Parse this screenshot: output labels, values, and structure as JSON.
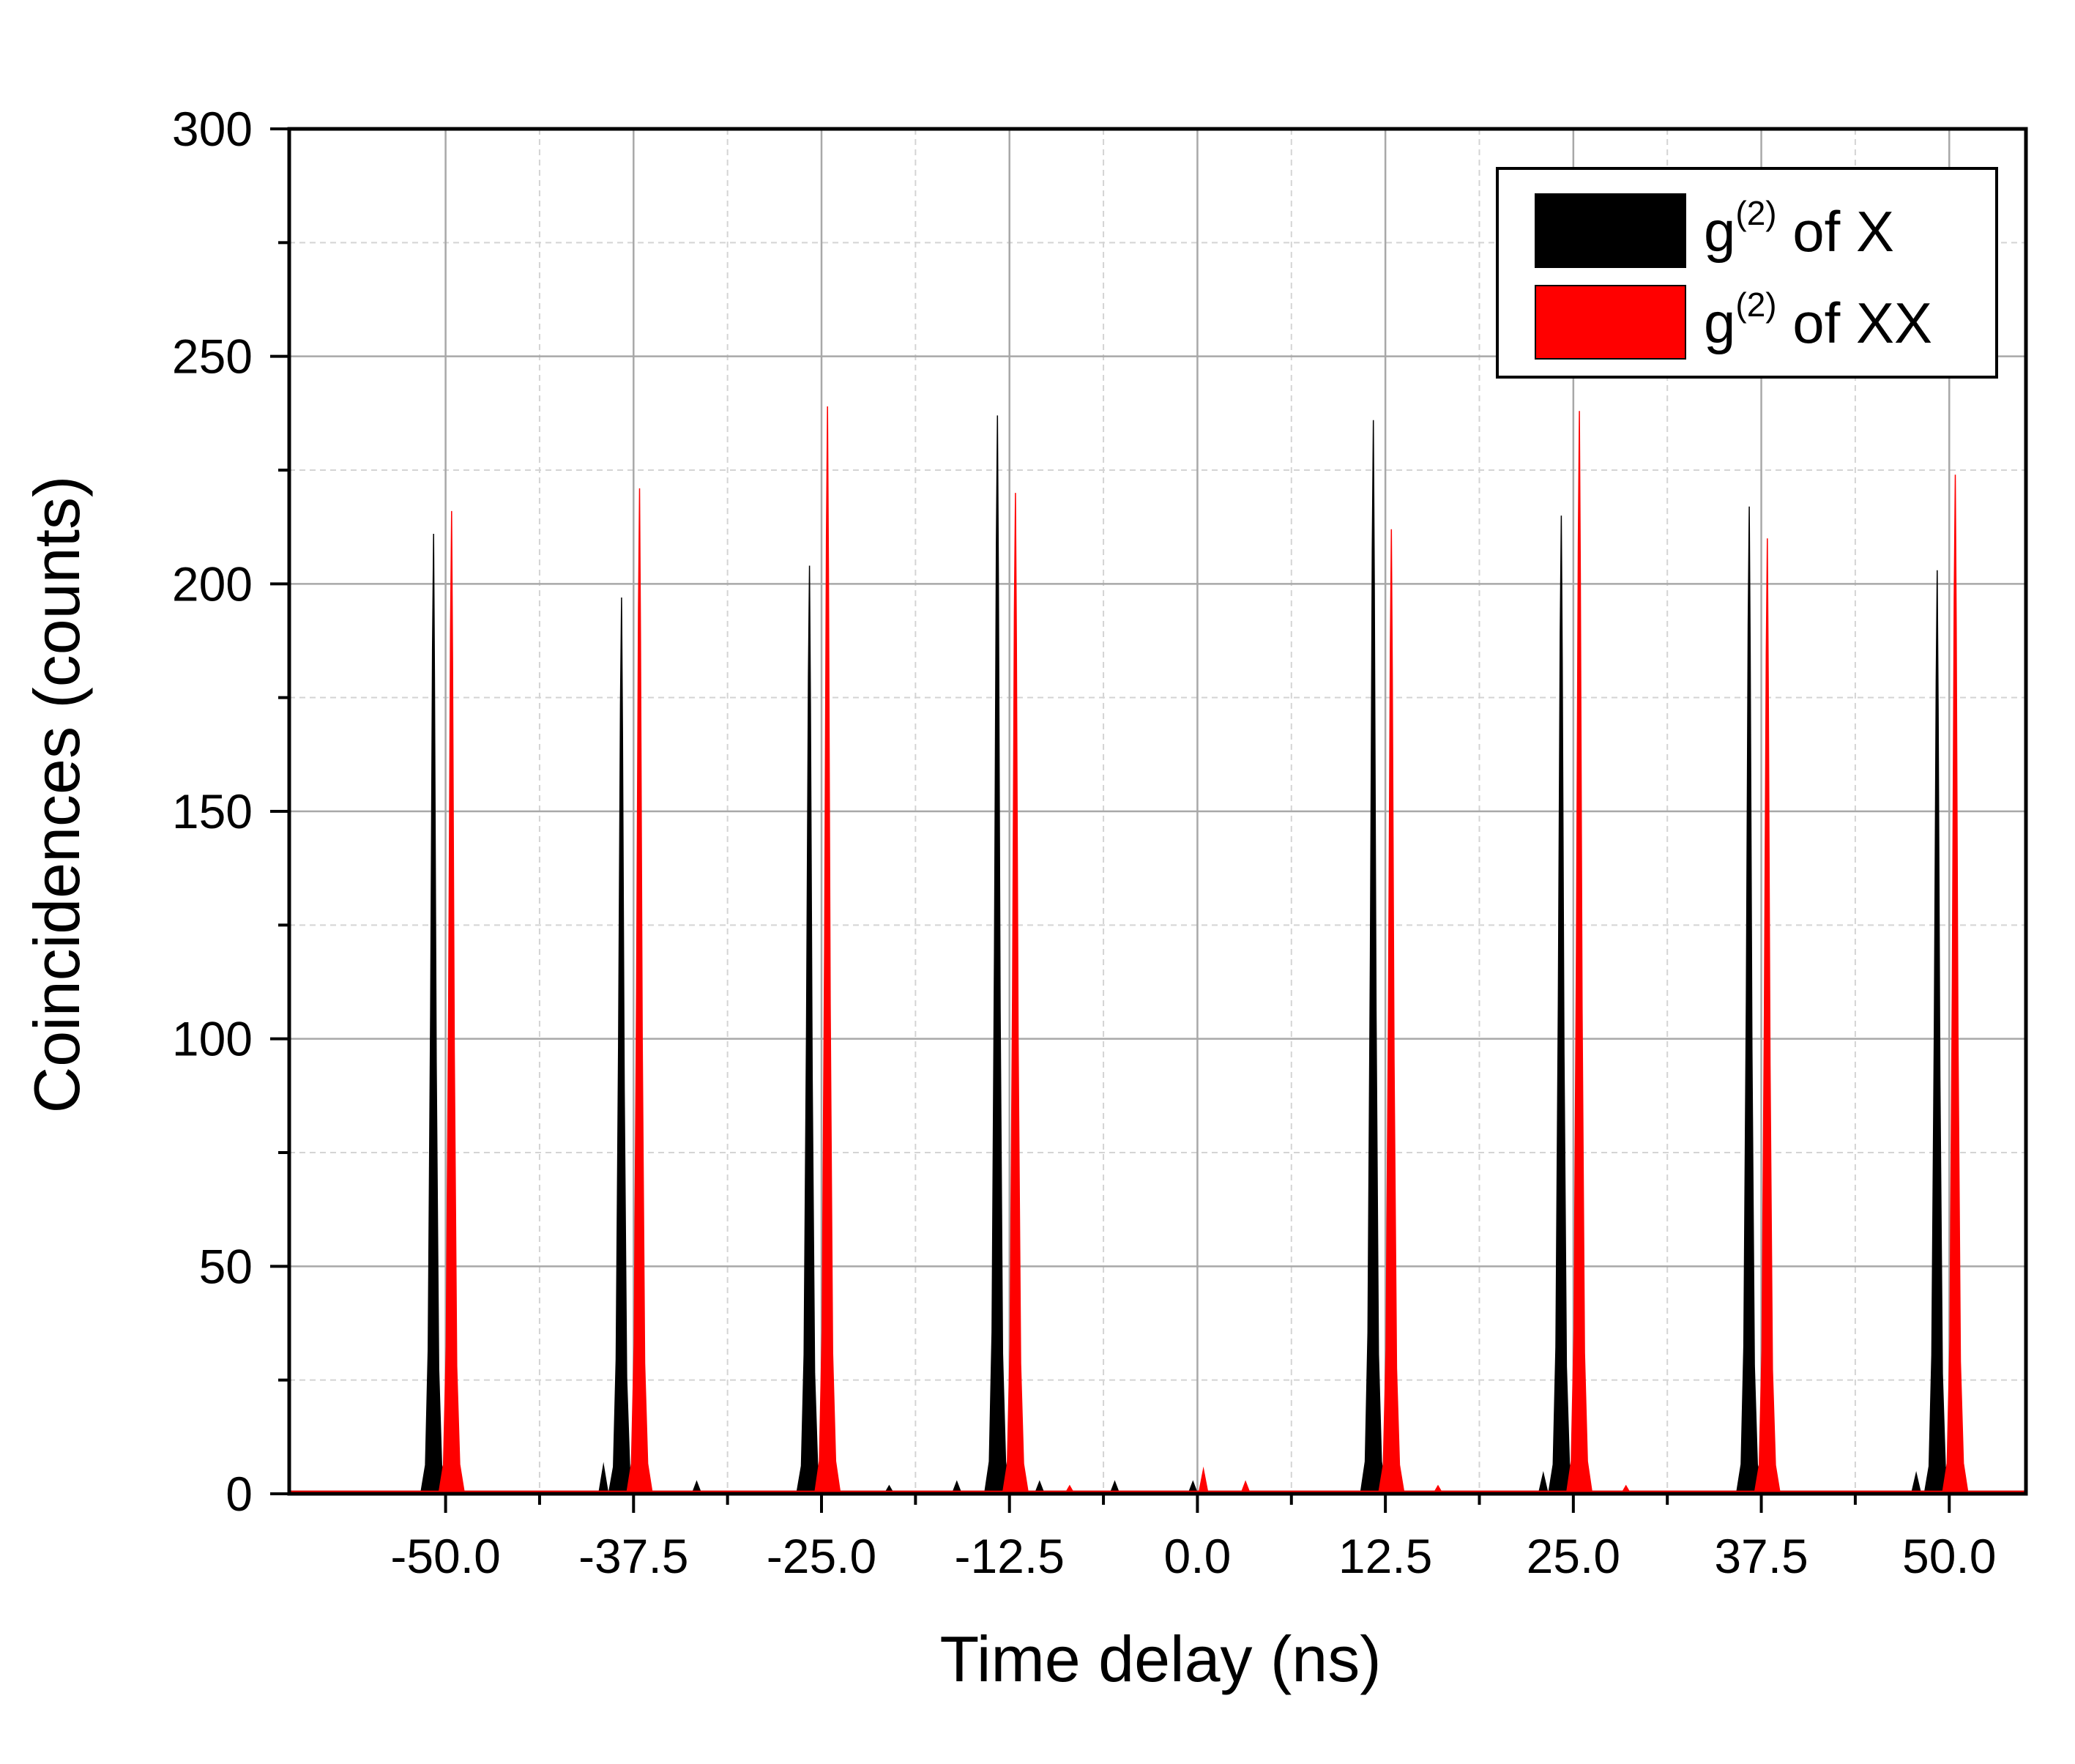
{
  "chart_data": {
    "type": "area",
    "xlabel": "Time delay (ns)",
    "ylabel": "Coincidences (counts)",
    "xlim": [
      -60.4,
      55.1
    ],
    "ylim": [
      0,
      300
    ],
    "xticks": [
      -50.0,
      -37.5,
      -25.0,
      -12.5,
      0.0,
      12.5,
      25.0,
      37.5,
      50.0
    ],
    "xtick_labels": [
      "-50.0",
      "-37.5",
      "-25.0",
      "-12.5",
      "0.0",
      "12.5",
      "25.0",
      "37.5",
      "50.0"
    ],
    "yticks": [
      0,
      50,
      100,
      150,
      200,
      250,
      300
    ],
    "ytick_labels": [
      "0",
      "50",
      "100",
      "150",
      "200",
      "250",
      "300"
    ],
    "grid": true,
    "legend_position": "top-right",
    "legend": [
      {
        "base": "g",
        "sup": "(2)",
        "rest": " of X",
        "color": "#000000"
      },
      {
        "base": "g",
        "sup": "(2)",
        "rest": " of XX",
        "color": "#ff0000"
      }
    ],
    "series": [
      {
        "color": "#000000",
        "peak_width_ns": 0.9,
        "peaks": [
          {
            "x": -50.8,
            "y": 211
          },
          {
            "x": -38.3,
            "y": 197
          },
          {
            "x": -25.8,
            "y": 204
          },
          {
            "x": -13.3,
            "y": 237
          },
          {
            "x": 11.7,
            "y": 236
          },
          {
            "x": 24.2,
            "y": 215
          },
          {
            "x": 36.7,
            "y": 217
          },
          {
            "x": 49.2,
            "y": 203
          }
        ],
        "small_bumps": [
          {
            "x": -39.5,
            "y": 7
          },
          {
            "x": -33.3,
            "y": 3
          },
          {
            "x": -20.5,
            "y": 2
          },
          {
            "x": -16.0,
            "y": 3
          },
          {
            "x": -10.5,
            "y": 3
          },
          {
            "x": -5.5,
            "y": 3
          },
          {
            "x": -0.3,
            "y": 3
          },
          {
            "x": 23.0,
            "y": 5
          },
          {
            "x": 47.8,
            "y": 5
          }
        ]
      },
      {
        "color": "#ff0000",
        "peak_width_ns": 0.9,
        "peaks": [
          {
            "x": -49.6,
            "y": 216
          },
          {
            "x": -37.1,
            "y": 221
          },
          {
            "x": -24.6,
            "y": 239
          },
          {
            "x": -12.1,
            "y": 220
          },
          {
            "x": 12.9,
            "y": 212
          },
          {
            "x": 25.4,
            "y": 238
          },
          {
            "x": 37.9,
            "y": 210
          },
          {
            "x": 50.4,
            "y": 224
          }
        ],
        "small_bumps": [
          {
            "x": 0.4,
            "y": 6
          },
          {
            "x": 3.2,
            "y": 3
          },
          {
            "x": -8.5,
            "y": 2
          },
          {
            "x": 16.0,
            "y": 2
          },
          {
            "x": 28.5,
            "y": 2
          }
        ]
      }
    ]
  }
}
